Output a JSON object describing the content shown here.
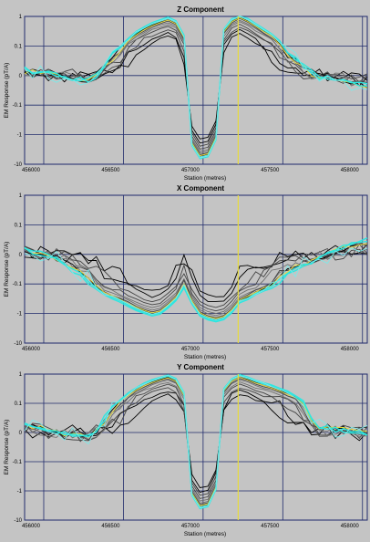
{
  "colors": {
    "background": "#c4c4c4",
    "grid": "#1f2a6b",
    "marker": "#e8dc3c",
    "black": "#000000",
    "dark": "#444444",
    "mid": "#707070",
    "cyan": "#2ee6e0",
    "cyan_light": "#7fe8e8"
  },
  "chart_data": [
    {
      "type": "line",
      "title": "Z Component",
      "xlabel": "Station (metres)",
      "ylabel": "EM Response (pT/A)",
      "xlim": [
        455880,
        458030
      ],
      "xticks": [
        456000,
        456500,
        457000,
        457500,
        458000
      ],
      "xtick_labels": [
        "456000",
        "456500",
        "457000",
        "457500",
        "458000"
      ],
      "scale": "symlog",
      "yticks": [
        1,
        0.1,
        0,
        -0.1,
        -1,
        -10
      ],
      "ytick_labels": [
        "1",
        "0.1",
        "0",
        "-0.1",
        "-1",
        "-10"
      ],
      "marker_x": 457220,
      "grid": true,
      "template": [
        [
          455880,
          0.02
        ],
        [
          456100,
          0.0
        ],
        [
          456300,
          -0.02
        ],
        [
          456500,
          0.12
        ],
        [
          456600,
          0.35
        ],
        [
          456800,
          1.0
        ],
        [
          456900,
          0.05
        ],
        [
          457000,
          -8.0
        ],
        [
          457100,
          0.1
        ],
        [
          457220,
          1.2
        ],
        [
          457350,
          0.45
        ],
        [
          457500,
          0.1
        ],
        [
          457700,
          0.0
        ],
        [
          458030,
          -0.04
        ]
      ],
      "series": [
        {
          "color": "black",
          "amp": 0.22,
          "noise": 0.04
        },
        {
          "color": "black",
          "amp": 0.3,
          "noise": 0.05
        },
        {
          "color": "dark",
          "amp": 0.38,
          "noise": 0.05
        },
        {
          "color": "dark",
          "amp": 0.48,
          "noise": 0.04
        },
        {
          "color": "mid",
          "amp": 0.58,
          "noise": 0.04
        },
        {
          "color": "mid",
          "amp": 0.66,
          "noise": 0.03
        },
        {
          "color": "dark",
          "amp": 0.74,
          "noise": 0.03
        },
        {
          "color": "black",
          "amp": 0.82,
          "noise": 0.02
        },
        {
          "color": "marker",
          "amp": 0.8,
          "noise": 0.02
        },
        {
          "color": "cyan",
          "amp": 0.92,
          "noise": 0.02
        },
        {
          "color": "cyan",
          "amp": 1.0,
          "noise": 0.02
        },
        {
          "color": "cyan_light",
          "amp": 0.95,
          "noise": 0.05
        }
      ]
    },
    {
      "type": "line",
      "title": "X Component",
      "xlabel": "Station (metres)",
      "ylabel": "EM Response (pT/A)",
      "xlim": [
        455880,
        458030
      ],
      "xticks": [
        456000,
        456500,
        457000,
        457500,
        458000
      ],
      "xtick_labels": [
        "456000",
        "456500",
        "457000",
        "457500",
        "458000"
      ],
      "scale": "symlog",
      "yticks": [
        1,
        0.1,
        0,
        -0.1,
        -1,
        -10
      ],
      "ytick_labels": [
        "1",
        "0.1",
        "0",
        "-0.1",
        "-1",
        "-10"
      ],
      "marker_x": 457220,
      "grid": true,
      "template": [
        [
          455880,
          0.02
        ],
        [
          456100,
          -0.02
        ],
        [
          456300,
          -0.1
        ],
        [
          456500,
          -0.45
        ],
        [
          456700,
          -1.3
        ],
        [
          456800,
          -0.5
        ],
        [
          456900,
          -0.05
        ],
        [
          457000,
          -1.5
        ],
        [
          457100,
          -2.0
        ],
        [
          457220,
          -0.45
        ],
        [
          457350,
          -0.2
        ],
        [
          457500,
          -0.08
        ],
        [
          457700,
          -0.02
        ],
        [
          457900,
          0.03
        ],
        [
          458030,
          0.05
        ]
      ],
      "series": [
        {
          "color": "black",
          "amp": 0.15,
          "noise": 0.05
        },
        {
          "color": "black",
          "amp": 0.22,
          "noise": 0.06
        },
        {
          "color": "dark",
          "amp": 0.32,
          "noise": 0.05
        },
        {
          "color": "dark",
          "amp": 0.42,
          "noise": 0.05
        },
        {
          "color": "mid",
          "amp": 0.52,
          "noise": 0.04
        },
        {
          "color": "mid",
          "amp": 0.62,
          "noise": 0.03
        },
        {
          "color": "dark",
          "amp": 0.72,
          "noise": 0.03
        },
        {
          "color": "black",
          "amp": 0.8,
          "noise": 0.02
        },
        {
          "color": "marker",
          "amp": 0.78,
          "noise": 0.02
        },
        {
          "color": "cyan",
          "amp": 0.9,
          "noise": 0.02
        },
        {
          "color": "cyan",
          "amp": 1.0,
          "noise": 0.02
        },
        {
          "color": "cyan_light",
          "amp": 0.85,
          "noise": 0.06
        }
      ]
    },
    {
      "type": "line",
      "title": "Y Component",
      "xlabel": "Station (metres)",
      "ylabel": "EM Response (pT/A)",
      "xlim": [
        455880,
        458030
      ],
      "xticks": [
        456000,
        456500,
        457000,
        457500,
        458000
      ],
      "xtick_labels": [
        "456000",
        "456500",
        "457000",
        "457500",
        "458000"
      ],
      "scale": "symlog",
      "yticks": [
        1,
        0.1,
        0,
        -0.1,
        -1,
        -10
      ],
      "ytick_labels": [
        "1",
        "0.1",
        "0",
        "-0.1",
        "-1",
        "-10"
      ],
      "marker_x": 457220,
      "grid": true,
      "template": [
        [
          455880,
          0.03
        ],
        [
          456100,
          0.0
        ],
        [
          456300,
          -0.02
        ],
        [
          456500,
          0.15
        ],
        [
          456600,
          0.4
        ],
        [
          456800,
          1.0
        ],
        [
          456900,
          0.05
        ],
        [
          457000,
          -5.0
        ],
        [
          457100,
          0.1
        ],
        [
          457220,
          1.0
        ],
        [
          457350,
          0.55
        ],
        [
          457500,
          0.3
        ],
        [
          457700,
          0.02
        ],
        [
          458030,
          0.0
        ]
      ],
      "series": [
        {
          "color": "black",
          "amp": 0.2,
          "noise": 0.05
        },
        {
          "color": "black",
          "amp": 0.28,
          "noise": 0.06
        },
        {
          "color": "dark",
          "amp": 0.36,
          "noise": 0.05
        },
        {
          "color": "dark",
          "amp": 0.46,
          "noise": 0.05
        },
        {
          "color": "mid",
          "amp": 0.56,
          "noise": 0.04
        },
        {
          "color": "mid",
          "amp": 0.66,
          "noise": 0.03
        },
        {
          "color": "dark",
          "amp": 0.74,
          "noise": 0.03
        },
        {
          "color": "black",
          "amp": 0.82,
          "noise": 0.02
        },
        {
          "color": "marker",
          "amp": 0.8,
          "noise": 0.02
        },
        {
          "color": "cyan",
          "amp": 0.92,
          "noise": 0.02
        },
        {
          "color": "cyan",
          "amp": 1.0,
          "noise": 0.02
        },
        {
          "color": "cyan_light",
          "amp": 0.95,
          "noise": 0.06
        }
      ]
    }
  ]
}
